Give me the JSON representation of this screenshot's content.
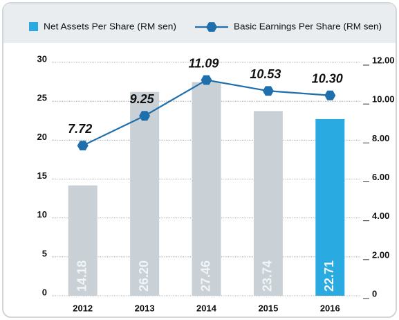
{
  "chart_data": {
    "type": "bar+line",
    "categories": [
      "2012",
      "2013",
      "2014",
      "2015",
      "2016"
    ],
    "series": [
      {
        "name": "Net Assets Per Share (RM sen)",
        "type": "bar",
        "color": "#29abe2",
        "bar_colors": [
          "#c9d1d6",
          "#c9d1d6",
          "#c9d1d6",
          "#c9d1d6",
          "#29abe2"
        ],
        "values": [
          14.18,
          26.2,
          27.46,
          23.74,
          22.71
        ],
        "value_labels": [
          "14.18",
          "26.20",
          "27.46",
          "23.74",
          "22.71"
        ]
      },
      {
        "name": "Basic Earnings Per Share (RM sen)",
        "type": "line",
        "axis": "y2",
        "color": "#1f6fad",
        "values": [
          7.72,
          9.25,
          11.09,
          10.53,
          10.3
        ],
        "value_labels": [
          "7.72",
          "9.25",
          "11.09",
          "10.53",
          "10.30"
        ]
      }
    ],
    "ylim": [
      0,
      30
    ],
    "yticks": [
      0,
      5,
      10,
      15,
      20,
      25,
      30
    ],
    "y2lim": [
      0,
      12
    ],
    "y2ticks": [
      0,
      {
        "value": 2,
        "label": "2.00"
      },
      {
        "value": 4,
        "label": "4.00"
      },
      {
        "value": 6,
        "label": "6.00"
      },
      {
        "value": 8,
        "label": "8.00"
      },
      {
        "value": 10,
        "label": "10.00"
      },
      {
        "value": 12,
        "label": "12.00"
      }
    ],
    "grid": true
  }
}
